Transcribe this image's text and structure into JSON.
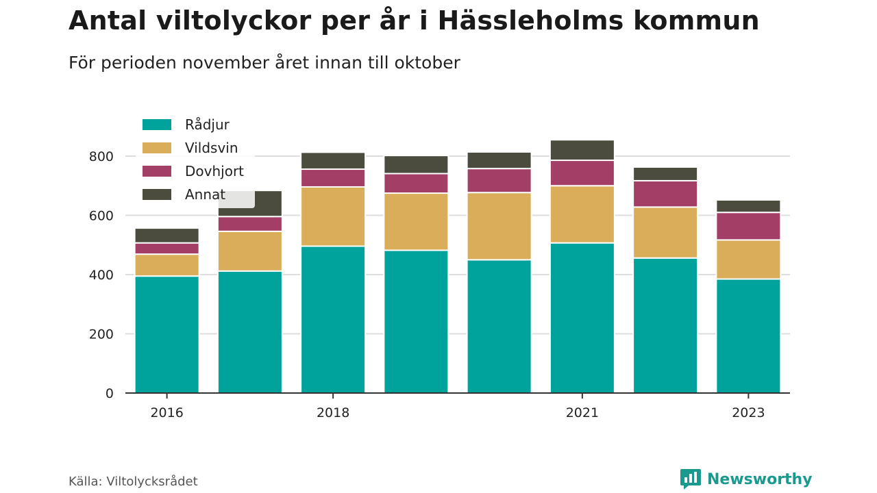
{
  "title": "Antal viltolyckor per år i Hässleholms kommun",
  "subtitle": "För perioden november året innan till oktober",
  "source": "Källa: Viltolycksrådet",
  "brand": "Newsworthy",
  "colors": {
    "Rådjur": "#00a39b",
    "Vildsvin": "#d9ad59",
    "Dovhjort": "#a33f66",
    "Annat": "#4b4c3e",
    "brand": "#1a9a8e"
  },
  "chart_data": {
    "type": "bar",
    "stacked": true,
    "categories": [
      "2016",
      "2017",
      "2018",
      "2019",
      "2020",
      "2021",
      "2022",
      "2023"
    ],
    "x_tick_labels": [
      "2016",
      "",
      "2018",
      "",
      "",
      "2021",
      "",
      "2023"
    ],
    "series": [
      {
        "name": "Rådjur",
        "values": [
          395,
          412,
          496,
          482,
          450,
          507,
          456,
          385
        ]
      },
      {
        "name": "Vildsvin",
        "values": [
          74,
          134,
          200,
          193,
          227,
          193,
          172,
          132
        ]
      },
      {
        "name": "Dovhjort",
        "values": [
          38,
          50,
          60,
          66,
          81,
          86,
          89,
          93
        ]
      },
      {
        "name": "Annat",
        "values": [
          50,
          88,
          57,
          61,
          56,
          69,
          46,
          42
        ]
      }
    ],
    "yticks": [
      0,
      200,
      400,
      600,
      800
    ],
    "ylim": [
      0,
      880
    ],
    "grid": true,
    "legend_position": "top-left"
  }
}
